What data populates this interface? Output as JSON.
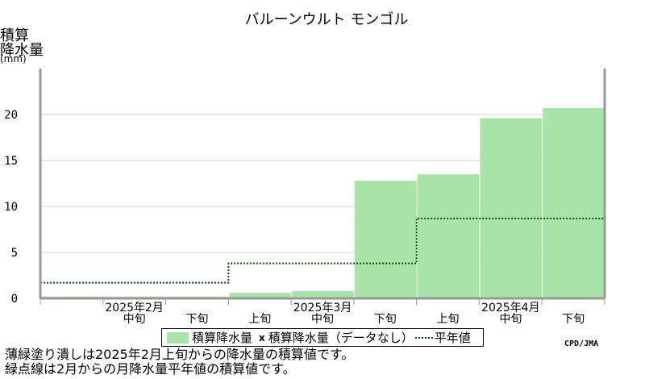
{
  "chart_data": {
    "type": "area",
    "title": "バルーンウルト モンゴル",
    "ylabel_lines": [
      "積算",
      "降水量",
      "(mm)"
    ],
    "ylim": [
      0,
      25
    ],
    "yticks": [
      0,
      5,
      10,
      15,
      20
    ],
    "periods": [
      "2025年2月上旬",
      "2025年2月中旬",
      "2025年2月下旬",
      "2025年3月上旬",
      "2025年3月中旬",
      "2025年3月下旬",
      "2025年4月上旬",
      "2025年4月中旬",
      "2025年4月下旬"
    ],
    "xtick_labels": [
      "中旬",
      "下旬",
      "上旬",
      "中旬",
      "下旬",
      "上旬",
      "中旬",
      "下旬"
    ],
    "month_labels": [
      "2025年2月",
      "2025年3月",
      "2025年4月"
    ],
    "series": [
      {
        "name": "積算降水量",
        "style": "fill",
        "color": "#aae3aa",
        "values": [
          0.2,
          0.2,
          0.2,
          0.6,
          0.8,
          12.8,
          13.5,
          19.6,
          20.7
        ]
      },
      {
        "name": "平年値",
        "style": "dotted-step",
        "color": "#005500",
        "values": [
          1.7,
          1.7,
          1.7,
          3.8,
          3.8,
          3.8,
          8.7,
          8.7,
          8.7
        ]
      }
    ],
    "grid": true
  },
  "legend": {
    "fill_label": "積算降水量",
    "x_label": "積算降水量（データなし）",
    "normal_label": "平年値"
  },
  "credit": "CPD/JMA",
  "notes": [
    "薄緑塗り潰しは2025年2月上旬からの降水量の積算値です。",
    "緑点線は2月からの月降水量平年値の積算値です。"
  ]
}
